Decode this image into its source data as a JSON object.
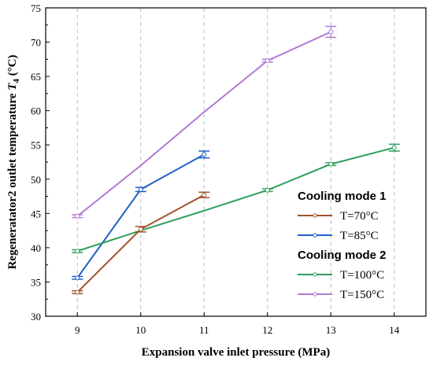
{
  "chart_data": {
    "type": "line",
    "xlabel": "Expansion valve inlet pressure (MPa)",
    "ylabel_main": "Regeneratator2 outlet temperature ",
    "ylabel_symbol": "T",
    "ylabel_sub": "4",
    "ylabel_unit": " (°C)",
    "xlim": [
      8.5,
      14.5
    ],
    "ylim": [
      30,
      75
    ],
    "xticks": [
      9,
      10,
      11,
      12,
      13,
      14
    ],
    "yticks": [
      30,
      35,
      40,
      45,
      50,
      55,
      60,
      65,
      70,
      75
    ],
    "grid": "vertical dashed at x ticks",
    "legend_position": "right",
    "legend_groups": [
      {
        "title": "Cooling mode 1",
        "series_names": [
          "T=70°C",
          "T=85°C"
        ]
      },
      {
        "title": "Cooling mode 2",
        "series_names": [
          "T=100°C",
          "T=150°C"
        ]
      }
    ],
    "series": [
      {
        "name": "T=70°C",
        "color": "#a0522d",
        "x": [
          9,
          10,
          11
        ],
        "y": [
          33.5,
          42.7,
          47.7
        ],
        "err": [
          0.2,
          0.4,
          0.4
        ]
      },
      {
        "name": "T=85°C",
        "color": "#1f5fc8",
        "x": [
          9,
          10,
          11
        ],
        "y": [
          35.6,
          48.5,
          53.6
        ],
        "err": [
          0.2,
          0.3,
          0.5
        ]
      },
      {
        "name": "T=100°C",
        "color": "#2e9e5b",
        "x": [
          9,
          10,
          11,
          12,
          13,
          14
        ],
        "y": [
          39.5,
          42.5,
          45.4,
          48.4,
          52.2,
          54.6
        ],
        "err": [
          0.2,
          0,
          0,
          0.2,
          0.2,
          0.5
        ]
      },
      {
        "name": "T=150°C",
        "color": "#b07ad6",
        "x": [
          9,
          10,
          11,
          12,
          13
        ],
        "y": [
          44.6,
          52.0,
          59.8,
          67.3,
          71.5
        ],
        "err": [
          0.2,
          0,
          0,
          0.2,
          0.8
        ]
      }
    ],
    "plotted_points": {
      "T=70°C": [
        0,
        1,
        2
      ],
      "T=85°C": [
        0,
        1,
        2
      ],
      "T=100°C": [
        0,
        3,
        4,
        5
      ],
      "T=150°C": [
        0,
        3,
        4
      ]
    }
  }
}
